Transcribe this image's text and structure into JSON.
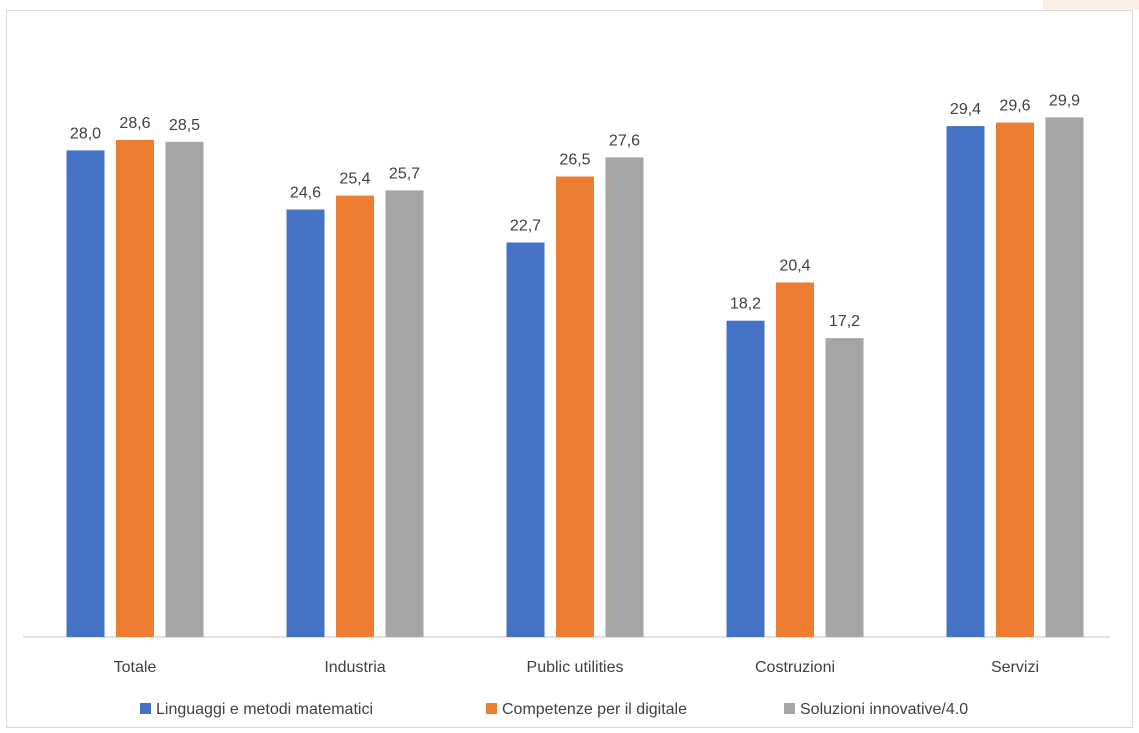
{
  "chart_data": {
    "type": "bar",
    "categories": [
      "Totale",
      "Industria",
      "Public utilities",
      "Costruzioni",
      "Servizi"
    ],
    "series": [
      {
        "name": "Linguaggi e metodi matematici",
        "color": "#4472c4",
        "values": [
          28.0,
          24.6,
          22.7,
          18.2,
          29.4
        ],
        "labels": [
          "28,0",
          "24,6",
          "22,7",
          "18,2",
          "29,4"
        ]
      },
      {
        "name": "Competenze per il digitale",
        "color": "#ed7d31",
        "values": [
          28.6,
          25.4,
          26.5,
          20.4,
          29.6
        ],
        "labels": [
          "28,6",
          "25,4",
          "26,5",
          "20,4",
          "29,6"
        ]
      },
      {
        "name": "Soluzioni innovative/4.0",
        "color": "#a5a5a5",
        "values": [
          28.5,
          25.7,
          27.6,
          17.2,
          29.9
        ],
        "labels": [
          "28,5",
          "25,7",
          "27,6",
          "17,2",
          "29,9"
        ]
      }
    ],
    "ylim": [
      0,
      30.5
    ],
    "grid": false,
    "legend_position": "bottom"
  }
}
